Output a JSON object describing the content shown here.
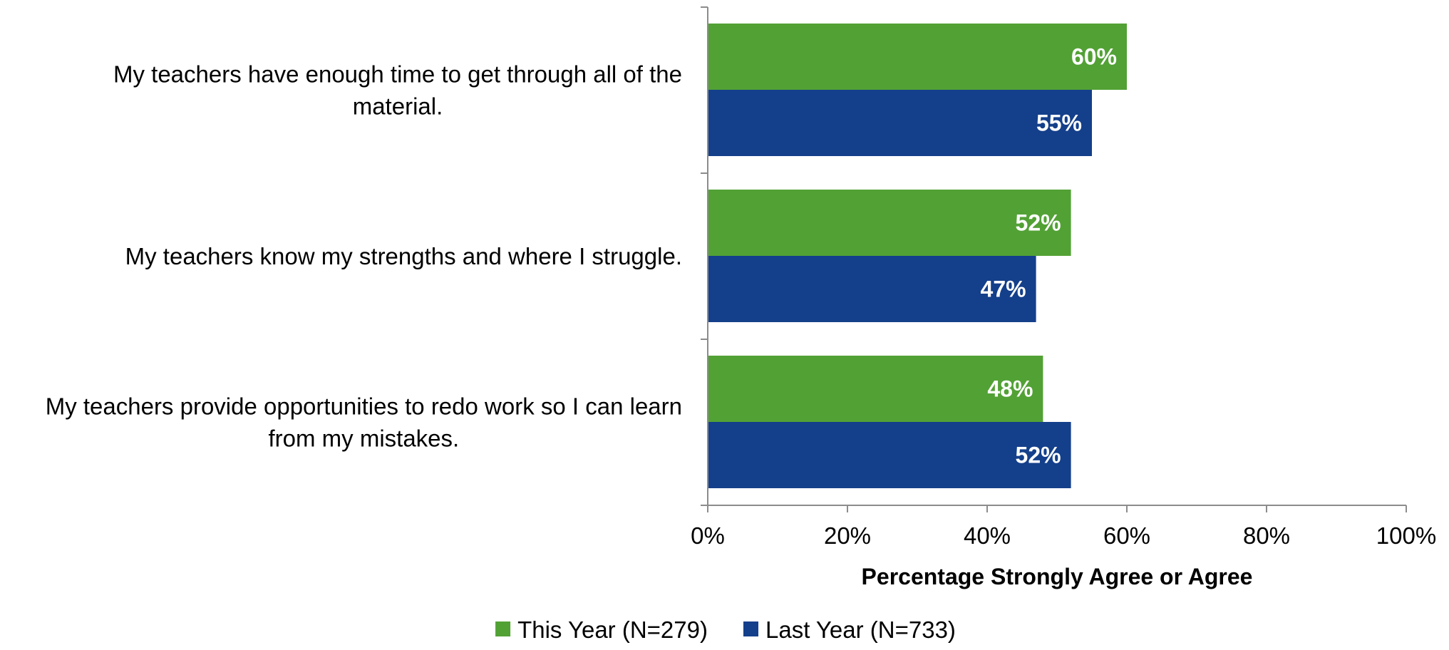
{
  "chart_data": {
    "type": "bar",
    "orientation": "horizontal",
    "categories": [
      [
        "My teachers have enough time to get through all of the",
        "material."
      ],
      [
        "My teachers know my strengths and where I struggle."
      ],
      [
        "My teachers provide opportunities to redo work so I can learn",
        "from my mistakes."
      ]
    ],
    "series": [
      {
        "name": "This Year (N=279)",
        "color": "#52A135",
        "values": [
          60,
          52,
          48
        ],
        "labels": [
          "60%",
          "52%",
          "48%"
        ]
      },
      {
        "name": "Last Year (N=733)",
        "color": "#143F8A",
        "values": [
          55,
          47,
          52
        ],
        "labels": [
          "55%",
          "47%",
          "52%"
        ]
      }
    ],
    "title": "",
    "xlabel": "Percentage Strongly Agree or Agree",
    "ylabel": "",
    "xlim": [
      0,
      100
    ],
    "xticks": [
      0,
      20,
      40,
      60,
      80,
      100
    ],
    "xtick_labels": [
      "0%",
      "20%",
      "40%",
      "60%",
      "80%",
      "100%"
    ],
    "grid": false,
    "legend_position": "bottom"
  }
}
